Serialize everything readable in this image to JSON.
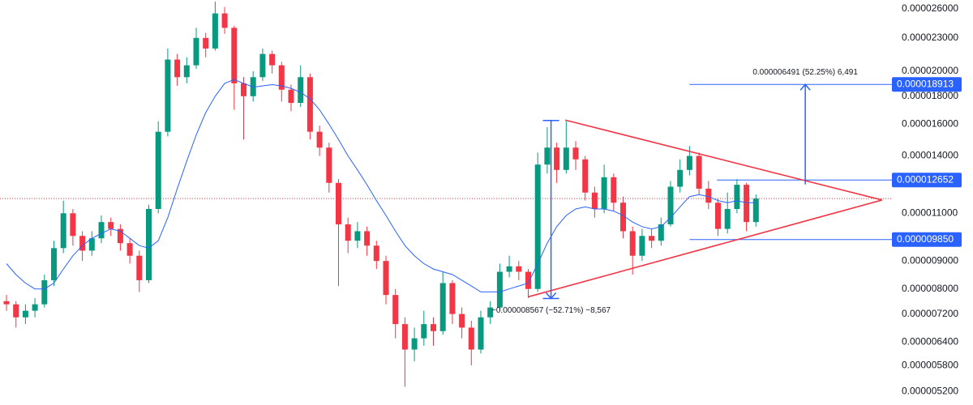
{
  "chart_data": {
    "type": "candlestick",
    "log_scale": true,
    "up_color": "#089981",
    "down_color": "#f23645",
    "open": [
      7.6e-06,
      7.5e-06,
      7.1e-06,
      7.3e-06,
      7.5e-06,
      8.3e-06,
      9.5e-06,
      1.1e-05,
      1e-05,
      9.4e-06,
      9.9e-06,
      1.06e-05,
      1.03e-05,
      9.7e-06,
      9.2e-06,
      8.3e-06,
      1.12e-05,
      1.55e-05,
      2.1e-05,
      1.95e-05,
      2.05e-05,
      2.3e-05,
      2.2e-05,
      2.55e-05,
      2.4e-05,
      1.9e-05,
      1.8e-05,
      1.95e-05,
      2.15e-05,
      2.05e-05,
      1.85e-05,
      1.75e-05,
      1.95e-05,
      1.55e-05,
      1.45e-05,
      1.25e-05,
      1.05e-05,
      9.8e-06,
      1.02e-05,
      9.6e-06,
      9e-06,
      7.8e-06,
      6.9e-06,
      6.2e-06,
      6.5e-06,
      6.9e-06,
      6.7e-06,
      8.2e-06,
      7.2e-06,
      6.8e-06,
      6.2e-06,
      7.1e-06,
      7.4e-06,
      8.6e-06,
      8.8e-06,
      8.6e-06,
      8e-06,
      1.35e-05,
      1.45e-05,
      1.32e-05,
      1.45e-05,
      1.38e-05,
      1.2e-05,
      1.12e-05,
      1.28e-05,
      1.15e-05,
      1.02e-05,
      9.2e-06,
      1e-05,
      9.8e-06,
      1.05e-05,
      1.23e-05,
      1.32e-05,
      1.4e-05,
      1.22e-05,
      1.15e-05,
      1.03e-05,
      1.12e-05,
      1.24e-05,
      1.06e-05
    ],
    "high": [
      7.8e-06,
      7.6e-06,
      7.5e-06,
      7.7e-06,
      8.5e-06,
      9.8e-06,
      1.16e-05,
      1.12e-05,
      1.02e-05,
      1.02e-05,
      1.09e-05,
      1.08e-05,
      1.05e-05,
      9.9e-06,
      9.4e-06,
      1.14e-05,
      1.62e-05,
      2.2e-05,
      2.15e-05,
      2.12e-05,
      2.4e-05,
      2.35e-05,
      2.68e-05,
      2.62e-05,
      2.42e-05,
      1.95e-05,
      2e-05,
      2.2e-05,
      2.18e-05,
      2.08e-05,
      1.89e-05,
      2.05e-05,
      1.98e-05,
      1.59e-05,
      1.48e-05,
      1.27e-05,
      1.08e-05,
      1.06e-05,
      1.04e-05,
      9.8e-06,
      9.2e-06,
      8e-06,
      7.1e-06,
      6.8e-06,
      7.3e-06,
      7.1e-06,
      8.6e-06,
      8.3e-06,
      7.4e-06,
      7e-06,
      7.3e-06,
      7.6e-06,
      8.9e-06,
      9.2e-06,
      9e-06,
      8.7e-06,
      1.42e-05,
      1.58e-05,
      1.48e-05,
      1.62e-05,
      1.49e-05,
      1.4e-05,
      1.23e-05,
      1.35e-05,
      1.3e-05,
      1.18e-05,
      1.04e-05,
      1.03e-05,
      1.03e-05,
      1.08e-05,
      1.26e-05,
      1.38e-05,
      1.46e-05,
      1.42e-05,
      1.26e-05,
      1.17e-05,
      1.2e-05,
      1.27e-05,
      1.25e-05,
      1.19e-05
    ],
    "low": [
      7.3e-06,
      6.8e-06,
      6.9e-06,
      7.1e-06,
      7.4e-06,
      8.1e-06,
      9.3e-06,
      9.6e-06,
      9e-06,
      9.2e-06,
      9.7e-06,
      1e-05,
      9.4e-06,
      8.9e-06,
      7.9e-06,
      8.2e-06,
      1.1e-05,
      1.52e-05,
      1.88e-05,
      1.9e-05,
      2.02e-05,
      2.12e-05,
      2.18e-05,
      2.34e-05,
      1.7e-05,
      1.5e-05,
      1.76e-05,
      1.92e-05,
      1.98e-05,
      1.76e-05,
      1.69e-05,
      1.72e-05,
      1.5e-05,
      1.4e-05,
      1.2e-05,
      8.1e-06,
      9.3e-06,
      9.5e-06,
      9.2e-06,
      8.7e-06,
      7.5e-06,
      6.5e-06,
      5.3e-06,
      5.9e-06,
      6.3e-06,
      6.3e-06,
      6.6e-06,
      6.9e-06,
      6.5e-06,
      5.8e-06,
      6.1e-06,
      6.9e-06,
      7.3e-06,
      8.4e-06,
      8.3e-06,
      7.7e-06,
      7.9e-06,
      1.3e-05,
      1.25e-05,
      1.3e-05,
      1.32e-05,
      1.16e-05,
      1.08e-05,
      1.1e-05,
      1.11e-05,
      9.9e-06,
      8.5e-06,
      9e-06,
      9.5e-06,
      9.6e-06,
      1.04e-05,
      1.2e-05,
      1.29e-05,
      1.19e-05,
      1.12e-05,
      1e-05,
      1.01e-05,
      1.1e-05,
      1.02e-05,
      1.04e-05
    ],
    "close": [
      7.5e-06,
      7.1e-06,
      7.3e-06,
      7.5e-06,
      8.3e-06,
      9.5e-06,
      1.1e-05,
      1e-05,
      9.4e-06,
      9.9e-06,
      1.06e-05,
      1.03e-05,
      9.7e-06,
      9.2e-06,
      8.3e-06,
      1.12e-05,
      1.55e-05,
      2.1e-05,
      1.95e-05,
      2.05e-05,
      2.3e-05,
      2.2e-05,
      2.55e-05,
      2.4e-05,
      1.9e-05,
      1.8e-05,
      1.95e-05,
      2.15e-05,
      2.05e-05,
      1.85e-05,
      1.75e-05,
      1.95e-05,
      1.55e-05,
      1.45e-05,
      1.25e-05,
      1.05e-05,
      9.8e-06,
      1.02e-05,
      9.6e-06,
      9e-06,
      7.8e-06,
      6.9e-06,
      6.2e-06,
      6.5e-06,
      6.9e-06,
      6.7e-06,
      8.2e-06,
      7.2e-06,
      6.8e-06,
      6.2e-06,
      7.1e-06,
      7.4e-06,
      8.6e-06,
      8.8e-06,
      8.6e-06,
      8e-06,
      1.35e-05,
      1.45e-05,
      1.32e-05,
      1.45e-05,
      1.38e-05,
      1.2e-05,
      1.12e-05,
      1.28e-05,
      1.15e-05,
      1.02e-05,
      9.2e-06,
      1e-05,
      9.8e-06,
      1.05e-05,
      1.23e-05,
      1.32e-05,
      1.4e-05,
      1.22e-05,
      1.15e-05,
      1.03e-05,
      1.12e-05,
      1.24e-05,
      1.06e-05,
      1.17e-05
    ],
    "ma": {
      "color": "#2962ff",
      "values": [
        8.9e-06,
        8.5e-06,
        8.2e-06,
        8e-06,
        8e-06,
        8.2e-06,
        8.7e-06,
        9.2e-06,
        9.6e-06,
        9.9e-06,
        1.01e-05,
        1.03e-05,
        1.02e-05,
        9.9e-06,
        9.6e-06,
        9.5e-06,
        9.8e-06,
        1.08e-05,
        1.22e-05,
        1.37e-05,
        1.53e-05,
        1.68e-05,
        1.8e-05,
        1.9e-05,
        1.93e-05,
        1.9e-05,
        1.87e-05,
        1.88e-05,
        1.89e-05,
        1.88e-05,
        1.86e-05,
        1.83e-05,
        1.78e-05,
        1.7e-05,
        1.6e-05,
        1.5e-05,
        1.4e-05,
        1.32e-05,
        1.24e-05,
        1.16e-05,
        1.09e-05,
        1.02e-05,
        9.6e-06,
        9.2e-06,
        8.9e-06,
        8.7e-06,
        8.6e-06,
        8.5e-06,
        8.3e-06,
        8.1e-06,
        7.9e-06,
        7.9e-06,
        7.9e-06,
        8e-06,
        8.1e-06,
        8.2e-06,
        8.9e-06,
        9.7e-06,
        1.04e-05,
        1.09e-05,
        1.12e-05,
        1.13e-05,
        1.12e-05,
        1.12e-05,
        1.11e-05,
        1.09e-05,
        1.06e-05,
        1.04e-05,
        1.03e-05,
        1.04e-05,
        1.08e-05,
        1.13e-05,
        1.18e-05,
        1.19e-05,
        1.18e-05,
        1.16e-05,
        1.15e-05,
        1.16e-05,
        1.15e-05,
        1.15e-05
      ]
    },
    "ylim": [
      4.91e-06,
      2.698e-05
    ],
    "yticks": [
      {
        "value": 2.6e-05,
        "label": "0.000026000"
      },
      {
        "value": 2.3e-05,
        "label": "0.000023000"
      },
      {
        "value": 2e-05,
        "label": "0.000020000"
      },
      {
        "value": 1.8e-05,
        "label": "0.000018000"
      },
      {
        "value": 1.6e-05,
        "label": "0.000016000"
      },
      {
        "value": 1.4e-05,
        "label": "0.000014000"
      },
      {
        "value": 1.1e-05,
        "label": "0.000011000"
      },
      {
        "value": 9e-06,
        "label": "0.000009000"
      },
      {
        "value": 8e-06,
        "label": "0.000008000"
      },
      {
        "value": 7.2e-06,
        "label": "0.000007200"
      },
      {
        "value": 6.4e-06,
        "label": "0.000006400"
      },
      {
        "value": 5.8e-06,
        "label": "0.000005800"
      },
      {
        "value": 5.2e-06,
        "label": "0.000005200"
      }
    ],
    "trendlines": [
      {
        "color": "#f23645",
        "points": [
          {
            "bar": 58.9,
            "price": 1.628e-05
          },
          {
            "bar": 92.3,
            "price": 1.163e-05
          }
        ]
      },
      {
        "color": "#f23645",
        "points": [
          {
            "bar": 55.0,
            "price": 7.74e-06
          },
          {
            "bar": 92.3,
            "price": 1.163e-05
          }
        ]
      }
    ],
    "levels": [
      {
        "value": 1.8913e-05,
        "label": "0.000018913",
        "from_bar": 72.0,
        "color": "#2962ff"
      },
      {
        "value": 1.2652e-05,
        "label": "0.000012652",
        "from_bar": 74.9,
        "color": "#2962ff"
      },
      {
        "value": 9.85e-06,
        "label": "0.000009850",
        "from_bar": 72.0,
        "color": "#2962ff"
      }
    ],
    "measures": [
      {
        "bar": 57.4,
        "from": 1.6253e-05,
        "to": 7.686e-06,
        "label": "−0.000008567 (−52.71%) −8,567",
        "color": "#2962ff"
      },
      {
        "bar": 84.2,
        "from": 1.2422e-05,
        "to": 1.8913e-05,
        "label": "0.000006491 (52.25%) 6,491",
        "color": "#2962ff"
      }
    ]
  }
}
